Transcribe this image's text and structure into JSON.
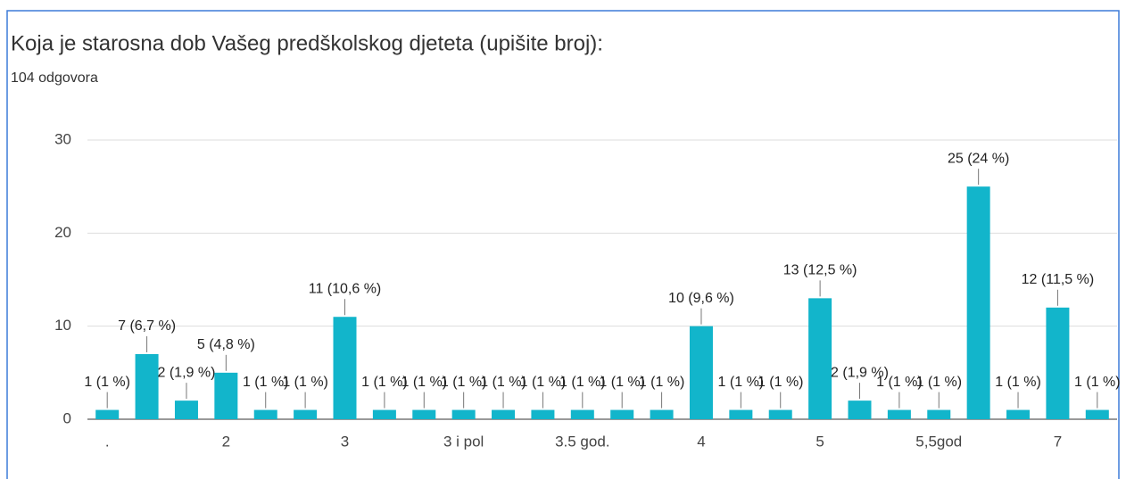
{
  "chart_data": {
    "type": "bar",
    "title": "Koja je starosna dob Vašeg predškolskog djeteta (upišite broj):",
    "subtitle": "104 odgovora",
    "categories": [
      ".",
      null,
      null,
      "2",
      null,
      null,
      "3",
      null,
      null,
      "3 i pol",
      null,
      null,
      "3.5 god.",
      null,
      null,
      "4",
      null,
      null,
      "5",
      null,
      null,
      "5,5god",
      null,
      null,
      "7",
      null
    ],
    "values": [
      1,
      7,
      2,
      5,
      1,
      1,
      11,
      1,
      1,
      1,
      1,
      1,
      1,
      1,
      1,
      10,
      1,
      1,
      13,
      2,
      1,
      1,
      25,
      1,
      12,
      1
    ],
    "value_labels": [
      "1 (1 %)",
      "7 (6,7 %)",
      "2 (1,9 %)",
      "5 (4,8 %)",
      "1 (1 %)",
      "1 (1 %)",
      "11 (10,6 %)",
      "1 (1 %)",
      "1 (1 %)",
      "1 (1 %)",
      "1 (1 %)",
      "1 (1 %)",
      "1 (1 %)",
      "1 (1 %)",
      "1 (1 %)",
      "10 (9,6 %)",
      "1 (1 %)",
      "1 (1 %)",
      "13 (12,5 %)",
      "2 (1,9 %)",
      "1 (1 %)",
      "1 (1 %)",
      "25 (24 %)",
      "1 (1 %)",
      "12 (11,5 %)",
      "1 (1 %)"
    ],
    "color": "#12b5cb",
    "ylim": [
      0,
      30
    ],
    "yticks": [
      0,
      10,
      20,
      30
    ],
    "grid": true
  }
}
